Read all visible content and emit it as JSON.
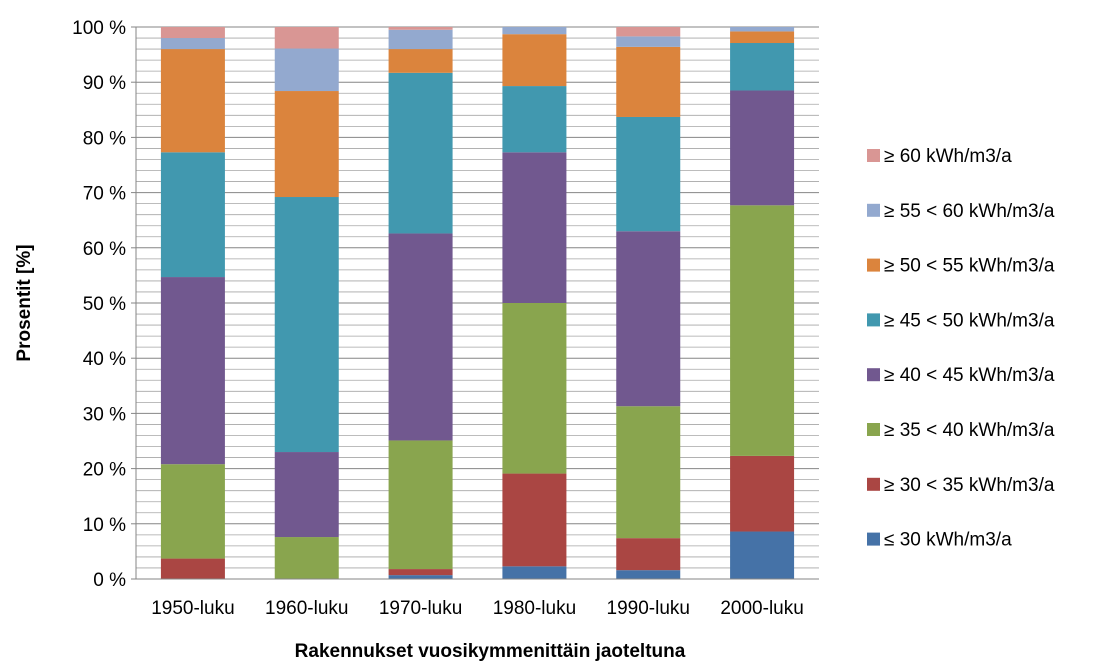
{
  "chart_data": {
    "type": "bar",
    "stacked": true,
    "normalized": true,
    "title": "",
    "xlabel": "Rakennukset vuosikymmenittäin jaoteltuna",
    "ylabel": "Prosentit [%]",
    "ylim": [
      0,
      100
    ],
    "y_ticks": [
      "0 %",
      "10 %",
      "20 %",
      "30 %",
      "40 %",
      "50 %",
      "60 %",
      "70 %",
      "80 %",
      "90 %",
      "100 %"
    ],
    "grid": true,
    "legend_position": "right",
    "categories": [
      "1950-luku",
      "1960-luku",
      "1970-luku",
      "1980-luku",
      "1990-luku",
      "2000-luku"
    ],
    "series": [
      {
        "name": "≤ 30 kWh/m3/a",
        "color": "#4572A7",
        "values": [
          0.0,
          0.0,
          0.7,
          2.3,
          1.6,
          8.6
        ]
      },
      {
        "name": "≥ 30 < 35 kWh/m3/a",
        "color": "#AA4643",
        "values": [
          3.7,
          0.0,
          1.1,
          16.8,
          5.8,
          13.7
        ]
      },
      {
        "name": "≥ 35 < 40 kWh/m3/a",
        "color": "#89A54E",
        "values": [
          17.1,
          7.6,
          23.3,
          30.9,
          23.9,
          45.4
        ]
      },
      {
        "name": "≥ 40 < 45 kWh/m3/a",
        "color": "#71588F",
        "values": [
          33.9,
          15.4,
          37.5,
          27.3,
          31.7,
          20.8
        ]
      },
      {
        "name": "≥ 45 < 50 kWh/m3/a",
        "color": "#4198AF",
        "values": [
          22.6,
          46.2,
          29.1,
          12.0,
          20.7,
          8.6
        ]
      },
      {
        "name": "≥ 50 < 55 kWh/m3/a",
        "color": "#DB843D",
        "values": [
          18.7,
          19.2,
          4.3,
          9.4,
          12.7,
          2.1
        ]
      },
      {
        "name": "≥ 55 < 60 kWh/m3/a",
        "color": "#93A9CF",
        "values": [
          2.0,
          7.7,
          3.5,
          1.3,
          1.9,
          0.8
        ]
      },
      {
        "name": "≥ 60 kWh/m3/a",
        "color": "#D99694",
        "values": [
          2.0,
          3.9,
          0.5,
          0.0,
          1.7,
          0.0
        ]
      }
    ]
  }
}
